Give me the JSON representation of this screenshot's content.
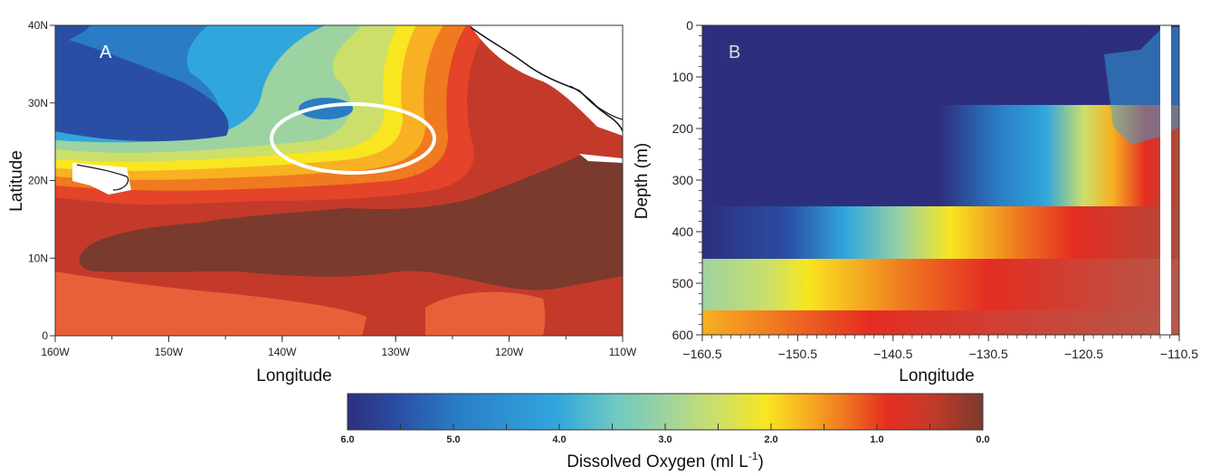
{
  "panel_a": {
    "label": "A",
    "x_label": "Longitude",
    "y_label": "Latitude",
    "x_ticks": [
      "160W",
      "150W",
      "140W",
      "130W",
      "120W",
      "110W"
    ],
    "y_ticks": [
      "0",
      "10N",
      "20N",
      "30N",
      "40N"
    ],
    "highlight": "white ellipse around 23-30N, 128-142W"
  },
  "panel_b": {
    "label": "B",
    "x_label": "Longitude",
    "y_label": "Depth (m)",
    "x_ticks": [
      "−160.5",
      "−150.5",
      "−140.5",
      "−130.5",
      "−120.5",
      "−110.5"
    ],
    "y_ticks": [
      "0",
      "100",
      "200",
      "300",
      "400",
      "500",
      "600"
    ]
  },
  "colorbar": {
    "label": "Dissolved Oxygen (ml L",
    "label_sup": "-1",
    "label_close": ")",
    "ticks": [
      "6.0",
      "5.0",
      "4.0",
      "3.0",
      "2.0",
      "1.0",
      "0.0"
    ],
    "colors": [
      "#2d2f7e",
      "#2a4ea4",
      "#2a7cc4",
      "#31a6dd",
      "#6ec8c2",
      "#9dd3a0",
      "#cbdf6a",
      "#f8e620",
      "#f7b122",
      "#f07a20",
      "#e42d22",
      "#c43a2a",
      "#7a3a2d"
    ]
  }
}
